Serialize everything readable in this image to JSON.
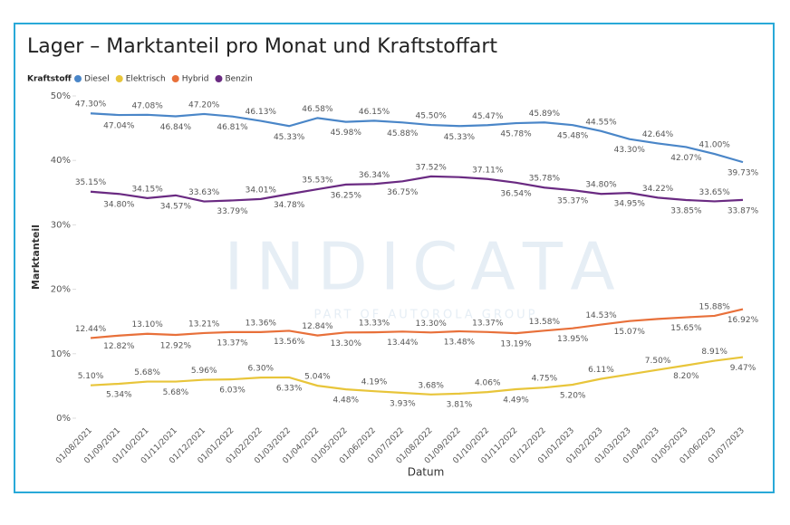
{
  "chart_data": {
    "type": "line",
    "title": "Lager – Marktanteil pro Monat und Kraftstoffart",
    "legend_title": "Kraftstoff",
    "xlabel": "Datum",
    "ylabel": "Marktanteil",
    "watermark": "INDICATA",
    "watermark_sub": "PART OF AUTOROLA GROUP",
    "categories": [
      "01/08/2021",
      "01/09/2021",
      "01/10/2021",
      "01/11/2021",
      "01/12/2021",
      "01/01/2022",
      "01/02/2022",
      "01/03/2022",
      "01/04/2022",
      "01/05/2022",
      "01/06/2022",
      "01/07/2022",
      "01/08/2022",
      "01/09/2022",
      "01/10/2022",
      "01/11/2022",
      "01/12/2022",
      "01/01/2023",
      "01/02/2023",
      "01/03/2023",
      "01/04/2023",
      "01/05/2023",
      "01/06/2023",
      "01/07/2023"
    ],
    "ylim": [
      0,
      50
    ],
    "yticks": [
      {
        "value": 0,
        "label": "0%"
      },
      {
        "value": 10,
        "label": "10%"
      },
      {
        "value": 20,
        "label": "20%"
      },
      {
        "value": 30,
        "label": "30%"
      },
      {
        "value": 40,
        "label": "40%"
      },
      {
        "value": 50,
        "label": "50%"
      }
    ],
    "grid": false,
    "series": [
      {
        "name": "Diesel",
        "color": "#4a86c8",
        "values": [
          47.3,
          47.04,
          47.08,
          46.84,
          47.2,
          46.81,
          46.13,
          45.33,
          46.58,
          45.98,
          46.15,
          45.88,
          45.5,
          45.33,
          45.47,
          45.78,
          45.89,
          45.48,
          44.55,
          43.3,
          42.64,
          42.07,
          41.0,
          39.73
        ],
        "value_labels": [
          "47.30%",
          "47.04%",
          "47.08%",
          "46.84%",
          "47.20%",
          "46.81%",
          "46.13%",
          "45.33%",
          "46.58%",
          "45.98%",
          "46.15%",
          "45.88%",
          "45.50%",
          "45.33%",
          "45.47%",
          "45.78%",
          "45.89%",
          "45.48%",
          "44.55%",
          "43.30%",
          "42.64%",
          "42.07%",
          "41.00%",
          "39.73%"
        ]
      },
      {
        "name": "Elektrisch",
        "color": "#e8c53a",
        "values": [
          5.1,
          5.34,
          5.68,
          5.68,
          5.96,
          6.03,
          6.3,
          6.33,
          5.04,
          4.48,
          4.19,
          3.93,
          3.68,
          3.81,
          4.06,
          4.49,
          4.75,
          5.2,
          6.11,
          6.8,
          7.5,
          8.2,
          8.91,
          9.47
        ],
        "value_labels": [
          "5.10%",
          "5.34%",
          "5.68%",
          "5.68%",
          "5.96%",
          "6.03%",
          "6.30%",
          "6.33%",
          "5.04%",
          "4.48%",
          "4.19%",
          "3.93%",
          "3.68%",
          "3.81%",
          "4.06%",
          "4.49%",
          "4.75%",
          "5.20%",
          "6.11%",
          null,
          "7.50%",
          "8.20%",
          "8.91%",
          "9.47%"
        ]
      },
      {
        "name": "Hybrid",
        "color": "#e8703a",
        "values": [
          12.44,
          12.82,
          13.1,
          12.92,
          13.21,
          13.37,
          13.36,
          13.56,
          12.84,
          13.3,
          13.33,
          13.44,
          13.3,
          13.48,
          13.37,
          13.19,
          13.58,
          13.95,
          14.53,
          15.07,
          15.4,
          15.65,
          15.88,
          16.92
        ],
        "value_labels": [
          "12.44%",
          "12.82%",
          "13.10%",
          "12.92%",
          "13.21%",
          "13.37%",
          "13.36%",
          "13.56%",
          "12.84%",
          "13.30%",
          "13.33%",
          "13.44%",
          "13.30%",
          "13.48%",
          "13.37%",
          "13.19%",
          "13.58%",
          "13.95%",
          "14.53%",
          "15.07%",
          null,
          "15.65%",
          "15.88%",
          "16.92%"
        ]
      },
      {
        "name": "Benzin",
        "color": "#6a2a82",
        "values": [
          35.15,
          34.8,
          34.15,
          34.57,
          33.63,
          33.79,
          34.01,
          34.78,
          35.53,
          36.25,
          36.34,
          36.75,
          37.52,
          37.4,
          37.11,
          36.54,
          35.78,
          35.37,
          34.8,
          34.95,
          34.22,
          33.85,
          33.65,
          33.87
        ],
        "value_labels": [
          "35.15%",
          "34.80%",
          "34.15%",
          "34.57%",
          "33.63%",
          "33.79%",
          "34.01%",
          "34.78%",
          "35.53%",
          "36.25%",
          "36.34%",
          "36.75%",
          "37.52%",
          null,
          "37.11%",
          "36.54%",
          "35.78%",
          "35.37%",
          "34.80%",
          "34.95%",
          "34.22%",
          "33.85%",
          "33.65%",
          "33.87%"
        ]
      }
    ]
  }
}
